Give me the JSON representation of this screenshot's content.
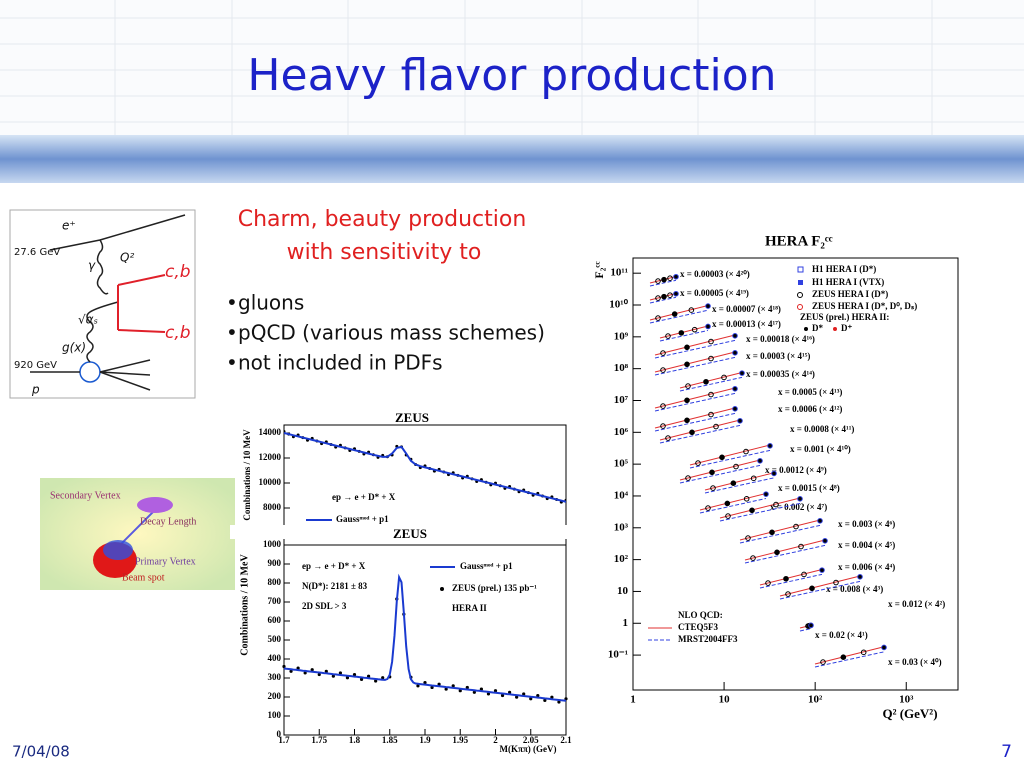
{
  "title": "Heavy flavor production",
  "subtitle": [
    "Charm, beauty production",
    "with sensitivity to"
  ],
  "bullets": [
    "gluons",
    "pQCD (various mass schemes)",
    "not included in PDFs"
  ],
  "footer": {
    "date": "7/04/08",
    "page": "7"
  },
  "diagram": {
    "labels": [
      "e⁺",
      "27.6 GeV",
      "Q²",
      "γ",
      "c,b",
      "c,b",
      "√αₛ",
      "g(x)",
      "920 GeV",
      "p"
    ]
  },
  "vertex": {
    "labels": [
      "Secondary Vertex",
      "Decay Length",
      "Primary Vertex",
      "Beam spot"
    ]
  },
  "zeus_top": {
    "title": "ZEUS",
    "y_label": "Combinations / 10 MeV",
    "ylim": [
      6640,
      14640
    ],
    "yticks": [
      14000,
      12000,
      10000,
      8000
    ],
    "legend": [
      "ep → e + D* + X",
      "Gaussᵐᵒᵈ + p1"
    ]
  },
  "zeus_bottom": {
    "title": "ZEUS",
    "x_label": "M(Kππ) (GeV)",
    "y_label": "Combinations / 10 MeV",
    "xlim": [
      1.7,
      2.1
    ],
    "xticks": [
      1.7,
      1.75,
      1.8,
      1.85,
      1.9,
      1.95,
      2,
      2.05,
      2.1
    ],
    "ylim": [
      0,
      1000
    ],
    "yticks": [
      0,
      100,
      200,
      300,
      400,
      500,
      600,
      700,
      800,
      900,
      1000
    ],
    "legend_left": [
      "ep → e + D* + X",
      "N(D*): 2181 ± 83",
      "2D SDL > 3"
    ],
    "legend_right": [
      "Gaussᵐᵒᵈ + p1",
      "ZEUS (prel.) 135 pb⁻¹",
      "HERA II"
    ]
  },
  "hera": {
    "title": "HERA F₂ᶜᶜ",
    "x_label": "Q² (GeV²)",
    "y_label": "F₂ᶜᶜ",
    "log": true,
    "xlim": [
      1,
      3700
    ],
    "xticks": [
      1,
      10,
      {
        "value": 100,
        "label": "10²"
      },
      {
        "value": 1000,
        "label": "10³"
      }
    ],
    "ylim": [
      0.008,
      300000000000
    ],
    "yticks": [
      {
        "value": 100000000000,
        "label": "10¹¹"
      },
      {
        "value": 10000000000,
        "label": "10¹⁰"
      },
      {
        "value": 1000000000,
        "label": "10⁹"
      },
      {
        "value": 100000000,
        "label": "10⁸"
      },
      {
        "value": 10000000,
        "label": "10⁷"
      },
      {
        "value": 1000000,
        "label": "10⁶"
      },
      {
        "value": 100000,
        "label": "10⁵"
      },
      {
        "value": 10000,
        "label": "10⁴"
      },
      {
        "value": 1000,
        "label": "10³"
      },
      {
        "value": 100,
        "label": "10²"
      },
      10,
      1,
      {
        "value": 0.1,
        "label": "10⁻¹"
      }
    ],
    "series_labels": [
      "x = 0.00003 (× 4²⁰)",
      "x = 0.00005 (× 4¹⁹)",
      "x = 0.00007 (× 4¹⁸)",
      "x = 0.00013 (× 4¹⁷)",
      "x = 0.00018 (× 4¹⁶)",
      "x = 0.0003 (× 4¹⁵)",
      "x = 0.00035 (× 4¹⁴)",
      "x = 0.0005 (× 4¹³)",
      "x = 0.0006 (× 4¹²)",
      "x = 0.0008 (× 4¹¹)",
      "x = 0.001 (× 4¹⁰)",
      "x = 0.0012 (× 4⁹)",
      "x = 0.0015 (× 4⁸)",
      "x = 0.002 (× 4⁷)",
      "x = 0.003 (× 4⁶)",
      "x = 0.004 (× 4⁵)",
      "x = 0.006 (× 4⁴)",
      "x = 0.008 (× 4³)",
      "x = 0.012 (× 4²)",
      "x = 0.02 (× 4¹)",
      "x = 0.03 (× 4⁰)"
    ],
    "legend": [
      "H1 HERA I (D*)",
      "H1 HERA I (VTX)",
      "ZEUS HERA I (D*)",
      "ZEUS HERA I (D*, D⁰, Dₛ)",
      "ZEUS (prel.) HERA II:",
      "D*",
      "D⁺"
    ],
    "theory_legend": [
      "NLO QCD:",
      "CTEQ5F3",
      "MRST2004FF3"
    ]
  }
}
